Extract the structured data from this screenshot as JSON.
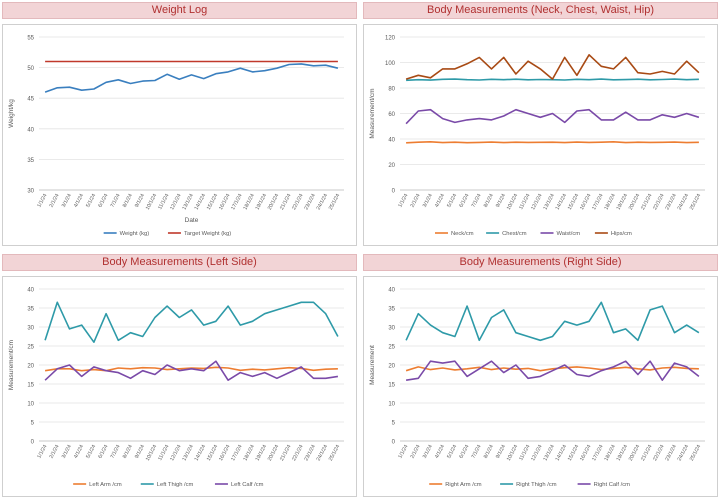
{
  "chart_data": [
    {
      "type": "line",
      "title": "Weight Log",
      "xlabel": "Date",
      "ylabel": "Weight/kg",
      "ylim": [
        30,
        55
      ],
      "yticks": [
        30,
        35,
        40,
        45,
        50,
        55
      ],
      "categories": [
        "1/1/24",
        "2/1/24",
        "3/1/24",
        "4/1/24",
        "5/1/24",
        "6/1/24",
        "7/1/24",
        "8/1/24",
        "9/1/24",
        "10/1/24",
        "11/1/24",
        "12/1/24",
        "13/1/24",
        "14/1/24",
        "15/1/24",
        "16/1/24",
        "17/1/24",
        "18/1/24",
        "19/1/24",
        "20/1/24",
        "21/1/24",
        "22/1/24",
        "23/1/24",
        "24/1/24",
        "25/1/24"
      ],
      "legend_position": "bottom",
      "series": [
        {
          "name": "Weight (kg)",
          "color": "#3a7fbf",
          "values": [
            46.0,
            46.7,
            46.8,
            46.3,
            46.5,
            47.6,
            48.0,
            47.4,
            47.8,
            47.9,
            48.9,
            48.1,
            48.8,
            48.2,
            49.0,
            49.3,
            49.9,
            49.3,
            49.5,
            49.9,
            50.5,
            50.6,
            50.3,
            50.4,
            49.9
          ]
        },
        {
          "name": "Target Weight (kg)",
          "color": "#c0392b",
          "values": [
            51,
            51,
            51,
            51,
            51,
            51,
            51,
            51,
            51,
            51,
            51,
            51,
            51,
            51,
            51,
            51,
            51,
            51,
            51,
            51,
            51,
            51,
            51,
            51,
            51
          ]
        }
      ]
    },
    {
      "type": "line",
      "title": "Body Measurements (Neck, Chest, Waist, Hip)",
      "xlabel": "",
      "ylabel": "Measurement/cm",
      "ylim": [
        0,
        120
      ],
      "yticks": [
        0,
        20,
        40,
        60,
        80,
        100,
        120
      ],
      "categories": [
        "1/1/24",
        "2/1/24",
        "3/1/24",
        "4/1/24",
        "5/1/24",
        "6/1/24",
        "7/1/24",
        "8/1/24",
        "9/1/24",
        "10/1/24",
        "11/1/24",
        "12/1/24",
        "13/1/24",
        "14/1/24",
        "15/1/24",
        "16/1/24",
        "17/1/24",
        "18/1/24",
        "19/1/24",
        "20/1/24",
        "21/1/24",
        "22/1/24",
        "23/1/24",
        "24/1/24",
        "25/1/24"
      ],
      "legend_position": "bottom",
      "series": [
        {
          "name": "Neck/cm",
          "color": "#ed7d31",
          "values": [
            37,
            37.5,
            37.8,
            37.2,
            37.5,
            37.1,
            37.3,
            37.6,
            37.2,
            37.5,
            37.3,
            37.4,
            37.5,
            37.2,
            37.6,
            37.3,
            37.5,
            37.8,
            37.2,
            37.5,
            37.3,
            37.4,
            37.6,
            37.2,
            37.4
          ]
        },
        {
          "name": "Chest/cm",
          "color": "#2e9aa8",
          "values": [
            86,
            86.5,
            86.2,
            86.8,
            87,
            86.5,
            86.3,
            86.8,
            86.5,
            86.9,
            86.4,
            86.7,
            86.5,
            86.3,
            86.8,
            86.5,
            87,
            86.4,
            86.6,
            86.9,
            86.4,
            86.7,
            87,
            86.5,
            86.8
          ]
        },
        {
          "name": "Waist/cm",
          "color": "#7a4aa8",
          "values": [
            52,
            62,
            63,
            56,
            53,
            55,
            56,
            55,
            58,
            63,
            60,
            57,
            60,
            53,
            62,
            63,
            55,
            55,
            61,
            55,
            55,
            59,
            57,
            60,
            57
          ]
        },
        {
          "name": "Hips/cm",
          "color": "#a84a14",
          "values": [
            87,
            90,
            88,
            95,
            95,
            99,
            104,
            95,
            104,
            91,
            101,
            95,
            87,
            104,
            90,
            106,
            97,
            95,
            104,
            92,
            91,
            93,
            91,
            101,
            92
          ]
        }
      ]
    },
    {
      "type": "line",
      "title": "Body Measurements (Left Side)",
      "xlabel": "",
      "ylabel": "Measurement/cm",
      "ylim": [
        0,
        40
      ],
      "yticks": [
        0,
        5,
        10,
        15,
        20,
        25,
        30,
        35,
        40
      ],
      "categories": [
        "1/1/24",
        "2/1/24",
        "3/1/24",
        "4/1/24",
        "5/1/24",
        "6/1/24",
        "7/1/24",
        "8/1/24",
        "9/1/24",
        "10/1/24",
        "11/1/24",
        "12/1/24",
        "13/1/24",
        "14/1/24",
        "15/1/24",
        "16/1/24",
        "17/1/24",
        "18/1/24",
        "19/1/24",
        "20/1/24",
        "21/1/24",
        "22/1/24",
        "23/1/24",
        "24/1/24",
        "25/1/24"
      ],
      "legend_position": "bottom",
      "series": [
        {
          "name": "Left Arm /cm",
          "color": "#ed7d31",
          "values": [
            18.5,
            19,
            19,
            18.5,
            18.8,
            18.5,
            19.2,
            19,
            19.3,
            19.2,
            18.8,
            19,
            19.2,
            19.1,
            19.4,
            19.2,
            18.6,
            18.9,
            18.7,
            19,
            19.3,
            19.1,
            18.6,
            18.9,
            19
          ]
        },
        {
          "name": "Left Thigh /cm",
          "color": "#2e9aa8",
          "values": [
            26.5,
            36.5,
            29.5,
            30.5,
            26,
            33.5,
            26.5,
            28.5,
            27.5,
            32.5,
            35.5,
            32.5,
            34.5,
            30.5,
            31.5,
            35.5,
            30.5,
            31.5,
            33.5,
            34.5,
            35.5,
            36.5,
            36.5,
            33.5,
            27.5
          ]
        },
        {
          "name": "Left Calf /cm",
          "color": "#7a4aa8",
          "values": [
            16,
            19,
            20,
            17,
            19.5,
            18.5,
            18,
            16.5,
            18.5,
            17.5,
            20,
            18.5,
            19,
            18.5,
            21,
            16,
            18,
            17,
            18,
            16.5,
            18,
            19.5,
            16.5,
            16.5,
            17
          ]
        }
      ]
    },
    {
      "type": "line",
      "title": "Body Measurements (Right Side)",
      "xlabel": "",
      "ylabel": "Measurement",
      "ylim": [
        0,
        40
      ],
      "yticks": [
        0,
        5,
        10,
        15,
        20,
        25,
        30,
        35,
        40
      ],
      "categories": [
        "1/1/24",
        "2/1/24",
        "3/1/24",
        "4/1/24",
        "5/1/24",
        "6/1/24",
        "7/1/24",
        "8/1/24",
        "9/1/24",
        "10/1/24",
        "11/1/24",
        "12/1/24",
        "13/1/24",
        "14/1/24",
        "15/1/24",
        "16/1/24",
        "17/1/24",
        "18/1/24",
        "19/1/24",
        "20/1/24",
        "21/1/24",
        "22/1/24",
        "23/1/24",
        "24/1/24",
        "25/1/24"
      ],
      "legend_position": "bottom",
      "series": [
        {
          "name": "Right Arm /cm",
          "color": "#ed7d31",
          "values": [
            18.5,
            19.5,
            18.8,
            19.2,
            18.7,
            19,
            19.4,
            18.8,
            19.2,
            18.9,
            19.1,
            18.5,
            19,
            19.3,
            19.5,
            19.2,
            18.8,
            19.1,
            19.4,
            19,
            18.7,
            19.2,
            19.4,
            19.1,
            19
          ]
        },
        {
          "name": "Right Thigh /cm",
          "color": "#2e9aa8",
          "values": [
            26.5,
            33.5,
            30.5,
            28.5,
            27.5,
            35.5,
            26.5,
            32.5,
            34.5,
            28.5,
            27.5,
            26.5,
            27.5,
            31.5,
            30.5,
            31.5,
            36.5,
            28.5,
            29.5,
            26.5,
            34.5,
            35.5,
            28.5,
            30.5,
            28.5
          ]
        },
        {
          "name": "Right Calf /cm",
          "color": "#7a4aa8",
          "values": [
            16,
            16.5,
            21,
            20.5,
            21,
            17,
            19,
            21,
            18,
            20,
            16.5,
            17,
            18.5,
            20,
            17.5,
            17,
            18.5,
            19.5,
            21,
            17.5,
            21,
            16,
            20.5,
            19.5,
            17
          ]
        }
      ]
    }
  ]
}
